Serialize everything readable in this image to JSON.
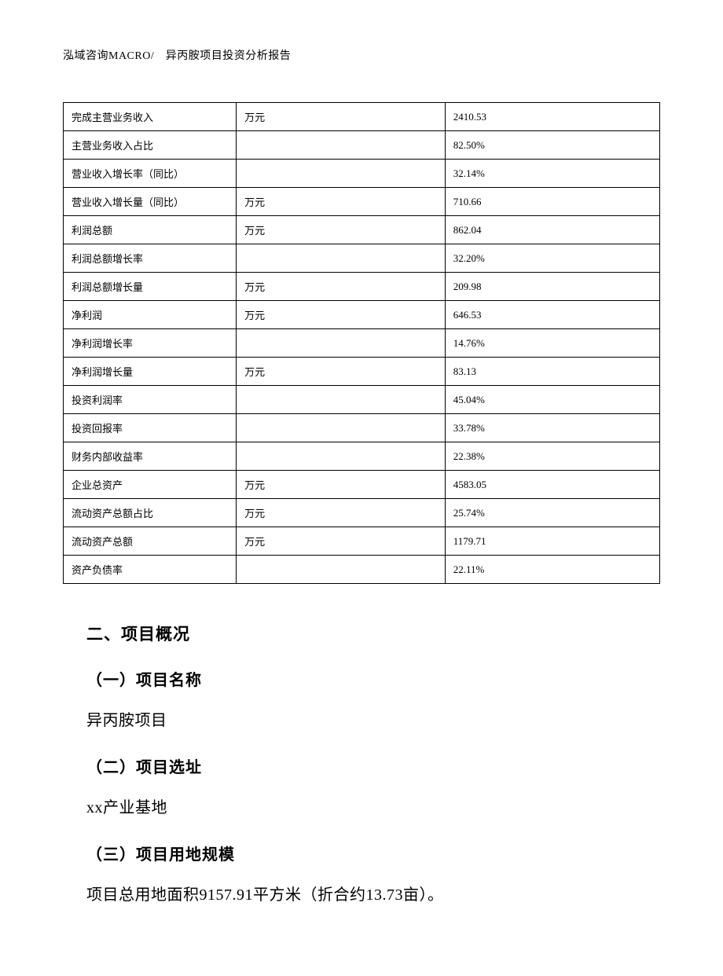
{
  "header": "泓域咨询MACRO/　异丙胺项目投资分析报告",
  "table": {
    "rows": [
      [
        "完成主营业务收入",
        "万元",
        "2410.53"
      ],
      [
        "主营业务收入占比",
        "",
        "82.50%"
      ],
      [
        "营业收入增长率（同比）",
        "",
        "32.14%"
      ],
      [
        "营业收入增长量（同比）",
        "万元",
        "710.66"
      ],
      [
        "利润总额",
        "万元",
        "862.04"
      ],
      [
        "利润总额增长率",
        "",
        "32.20%"
      ],
      [
        "利润总额增长量",
        "万元",
        "209.98"
      ],
      [
        "净利润",
        "万元",
        "646.53"
      ],
      [
        "净利润增长率",
        "",
        "14.76%"
      ],
      [
        "净利润增长量",
        "万元",
        "83.13"
      ],
      [
        "投资利润率",
        "",
        "45.04%"
      ],
      [
        "投资回报率",
        "",
        "33.78%"
      ],
      [
        "财务内部收益率",
        "",
        "22.38%"
      ],
      [
        "企业总资产",
        "万元",
        "4583.05"
      ],
      [
        "流动资产总额占比",
        "万元",
        "25.74%"
      ],
      [
        "流动资产总额",
        "万元",
        "1179.71"
      ],
      [
        "资产负债率",
        "",
        "22.11%"
      ]
    ]
  },
  "section": {
    "title": "二、项目概况",
    "sub1_title": "（一）项目名称",
    "sub1_text": "异丙胺项目",
    "sub2_title": "（二）项目选址",
    "sub2_text": "xx产业基地",
    "sub3_title": "（三）项目用地规模",
    "sub3_text": "项目总用地面积9157.91平方米（折合约13.73亩）。"
  }
}
